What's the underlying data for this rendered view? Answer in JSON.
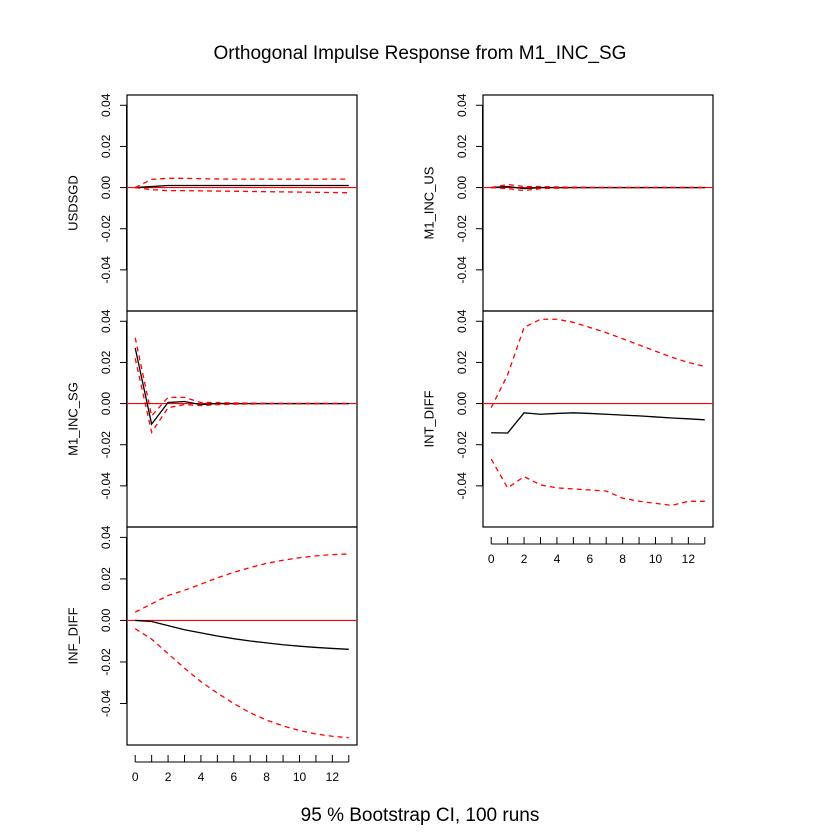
{
  "title": "Orthogonal Impulse Response from M1_INC_SG",
  "footer": "95 % Bootstrap CI,  100 runs",
  "colors": {
    "response": "#000000",
    "ci": "#ff0000",
    "zero_line": "#ff0000"
  },
  "x_ticks": [
    0,
    2,
    4,
    6,
    8,
    10,
    12
  ],
  "y_ticks": [
    "0.04",
    "0.02",
    "0.00",
    "-0.02",
    "-0.04"
  ],
  "chart_data": [
    {
      "type": "line",
      "panel": "left-top",
      "ylabel": "USDSGD",
      "x": [
        0,
        1,
        2,
        3,
        4,
        5,
        6,
        7,
        8,
        9,
        10,
        11,
        12,
        13
      ],
      "ylim": [
        -0.06,
        0.045
      ],
      "xlim": [
        -0.5,
        13.5
      ],
      "series": [
        {
          "role": "response",
          "values": [
            0,
            0.0005,
            0.001,
            0.001,
            0.001,
            0.001,
            0.001,
            0.001,
            0.001,
            0.001,
            0.001,
            0.001,
            0.001,
            0.001
          ]
        },
        {
          "role": "upper",
          "values": [
            0,
            0.004,
            0.0045,
            0.0045,
            0.0043,
            0.0042,
            0.0041,
            0.0041,
            0.0041,
            0.0041,
            0.0041,
            0.0041,
            0.0041,
            0.0041
          ]
        },
        {
          "role": "lower",
          "values": [
            0,
            -0.001,
            -0.0015,
            -0.0015,
            -0.0016,
            -0.0017,
            -0.0018,
            -0.0019,
            -0.002,
            -0.0021,
            -0.0022,
            -0.0023,
            -0.0024,
            -0.0025
          ]
        }
      ]
    },
    {
      "type": "line",
      "panel": "left-middle",
      "ylabel": "M1_INC_SG",
      "x": [
        0,
        1,
        2,
        3,
        4,
        5,
        6,
        7,
        8,
        9,
        10,
        11,
        12,
        13
      ],
      "ylim": [
        -0.06,
        0.045
      ],
      "xlim": [
        -0.5,
        13.5
      ],
      "series": [
        {
          "role": "response",
          "values": [
            0.027,
            -0.01,
            0.0005,
            0.001,
            -0.0005,
            0,
            0,
            0,
            0,
            0,
            0,
            0,
            0,
            0
          ]
        },
        {
          "role": "upper",
          "values": [
            0.032,
            -0.006,
            0.003,
            0.003,
            0.0005,
            0.0005,
            0.0003,
            0.0002,
            0.0001,
            0.0001,
            0,
            0,
            0,
            0
          ]
        },
        {
          "role": "lower",
          "values": [
            0.022,
            -0.014,
            -0.002,
            -0.0005,
            -0.001,
            -0.0005,
            -0.0003,
            -0.0002,
            -0.0001,
            -0.0001,
            0,
            0,
            0,
            0
          ]
        }
      ]
    },
    {
      "type": "line",
      "panel": "left-bottom",
      "ylabel": "INF_DIFF",
      "x": [
        0,
        1,
        2,
        3,
        4,
        5,
        6,
        7,
        8,
        9,
        10,
        11,
        12,
        13
      ],
      "ylim": [
        -0.06,
        0.045
      ],
      "xlim": [
        -0.5,
        13.5
      ],
      "series": [
        {
          "role": "response",
          "values": [
            0,
            -0.0005,
            -0.0025,
            -0.0045,
            -0.006,
            -0.0075,
            -0.0088,
            -0.0099,
            -0.0108,
            -0.0117,
            -0.0124,
            -0.013,
            -0.0135,
            -0.0139
          ]
        },
        {
          "role": "upper",
          "values": [
            0.004,
            0.008,
            0.012,
            0.0145,
            0.0175,
            0.0205,
            0.0232,
            0.0255,
            0.0275,
            0.029,
            0.0302,
            0.0311,
            0.0317,
            0.032
          ]
        },
        {
          "role": "lower",
          "values": [
            -0.004,
            -0.009,
            -0.016,
            -0.023,
            -0.0295,
            -0.035,
            -0.04,
            -0.0445,
            -0.048,
            -0.0508,
            -0.053,
            -0.0547,
            -0.0558,
            -0.0565
          ]
        }
      ]
    },
    {
      "type": "line",
      "panel": "right-top",
      "ylabel": "M1_INC_US",
      "x": [
        0,
        1,
        2,
        3,
        4,
        5,
        6,
        7,
        8,
        9,
        10,
        11,
        12,
        13
      ],
      "ylim": [
        -0.06,
        0.045
      ],
      "xlim": [
        -0.5,
        13.5
      ],
      "series": [
        {
          "role": "response",
          "values": [
            0,
            0.0005,
            -0.0005,
            0,
            0,
            0,
            0,
            0,
            0,
            0,
            0,
            0,
            0,
            0
          ]
        },
        {
          "role": "upper",
          "values": [
            0,
            0.0015,
            0.0005,
            0.0005,
            0.0003,
            0.0002,
            0.0001,
            0.0001,
            0,
            0,
            0,
            0,
            0,
            0
          ]
        },
        {
          "role": "lower",
          "values": [
            0,
            -0.0005,
            -0.0015,
            -0.0005,
            -0.0003,
            -0.0002,
            -0.0001,
            -0.0001,
            0,
            0,
            0,
            0,
            0,
            0
          ]
        }
      ]
    },
    {
      "type": "line",
      "panel": "right-middle",
      "ylabel": "INT_DIFF",
      "x": [
        0,
        1,
        2,
        3,
        4,
        5,
        6,
        7,
        8,
        9,
        10,
        11,
        12,
        13
      ],
      "ylim": [
        -0.06,
        0.045
      ],
      "xlim": [
        -0.5,
        13.5
      ],
      "series": [
        {
          "role": "response",
          "values": [
            -0.0142,
            -0.0143,
            -0.0045,
            -0.0052,
            -0.0048,
            -0.0045,
            -0.0048,
            -0.0052,
            -0.0056,
            -0.006,
            -0.0065,
            -0.007,
            -0.0074,
            -0.0079
          ]
        },
        {
          "role": "upper",
          "values": [
            -0.002,
            0.014,
            0.037,
            0.041,
            0.041,
            0.0395,
            0.037,
            0.0345,
            0.0315,
            0.0285,
            0.0255,
            0.0225,
            0.02,
            0.018
          ]
        },
        {
          "role": "lower",
          "values": [
            -0.027,
            -0.041,
            -0.0355,
            -0.0395,
            -0.041,
            -0.0415,
            -0.042,
            -0.0425,
            -0.046,
            -0.0475,
            -0.0485,
            -0.0495,
            -0.0475,
            -0.0475
          ]
        }
      ]
    }
  ]
}
